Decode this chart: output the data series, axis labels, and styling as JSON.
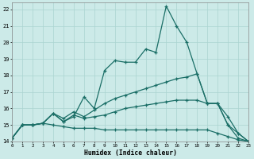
{
  "xlabel": "Humidex (Indice chaleur)",
  "bg_color": "#cceae8",
  "grid_color": "#aad4d0",
  "line_color": "#1a6e66",
  "xlim": [
    0,
    23
  ],
  "ylim": [
    14,
    22.4
  ],
  "xticks": [
    0,
    1,
    2,
    3,
    4,
    5,
    6,
    7,
    8,
    9,
    10,
    11,
    12,
    13,
    14,
    15,
    16,
    17,
    18,
    19,
    20,
    21,
    22,
    23
  ],
  "yticks": [
    14,
    15,
    16,
    17,
    18,
    19,
    20,
    21,
    22
  ],
  "line1_y": [
    14.2,
    15.0,
    15.0,
    15.1,
    15.7,
    15.2,
    15.5,
    16.7,
    16.0,
    18.3,
    18.9,
    18.8,
    18.8,
    19.6,
    19.4,
    22.2,
    21.0,
    20.0,
    18.1,
    16.3,
    16.3,
    15.0,
    14.2,
    14.0
  ],
  "line2_y": [
    14.2,
    15.0,
    15.0,
    15.1,
    15.7,
    15.4,
    15.8,
    15.5,
    15.9,
    16.3,
    16.6,
    16.8,
    17.0,
    17.2,
    17.4,
    17.6,
    17.8,
    17.9,
    18.1,
    16.3,
    16.3,
    15.0,
    14.5,
    14.0
  ],
  "line3_y": [
    14.2,
    15.0,
    15.0,
    15.1,
    15.7,
    15.2,
    15.6,
    15.4,
    15.5,
    15.6,
    15.8,
    16.0,
    16.1,
    16.2,
    16.3,
    16.4,
    16.5,
    16.5,
    16.5,
    16.3,
    16.3,
    15.5,
    14.5,
    14.0
  ],
  "line4_y": [
    14.2,
    15.0,
    15.0,
    15.1,
    15.0,
    14.9,
    14.8,
    14.8,
    14.8,
    14.7,
    14.7,
    14.7,
    14.7,
    14.7,
    14.7,
    14.7,
    14.7,
    14.7,
    14.7,
    14.7,
    14.5,
    14.3,
    14.1,
    14.0
  ],
  "marker": "+"
}
